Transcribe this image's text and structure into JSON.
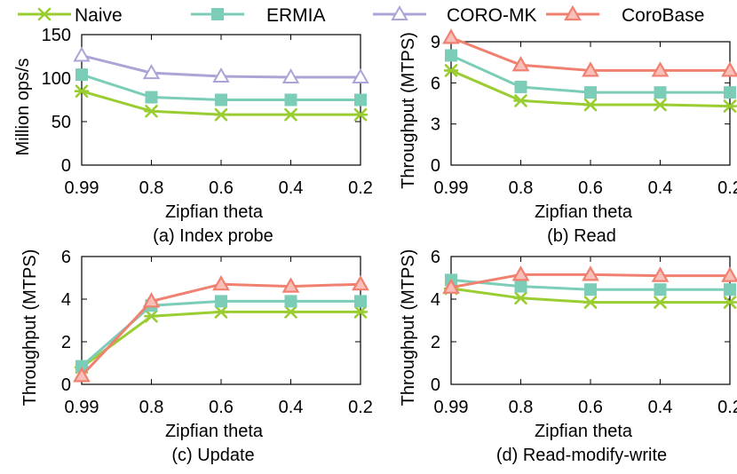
{
  "legend": [
    {
      "name": "Naive",
      "color": "#9ACD32",
      "marker": "star"
    },
    {
      "name": "ERMIA",
      "color": "#7CCDB8",
      "marker": "square"
    },
    {
      "name": "CORO-MK",
      "color": "#ADA4D6",
      "marker": "triangle-open"
    },
    {
      "name": "CoroBase",
      "color": "#F08070",
      "marker": "triangle-filled"
    }
  ],
  "chart_data": [
    {
      "type": "line",
      "caption": "(a) Index probe",
      "xlabel": "Zipfian theta",
      "ylabel": "Million ops/s",
      "categories": [
        "0.99",
        "0.8",
        "0.6",
        "0.4",
        "0.2"
      ],
      "ylim": [
        0,
        150
      ],
      "yticks": [
        0,
        50,
        100,
        150
      ],
      "grid": false,
      "series": [
        {
          "name": "Naive",
          "values": [
            85,
            62,
            58,
            58,
            58
          ]
        },
        {
          "name": "ERMIA",
          "values": [
            104,
            78,
            75,
            75,
            75
          ]
        },
        {
          "name": "CORO-MK",
          "values": [
            126,
            106,
            102,
            101,
            101
          ]
        }
      ]
    },
    {
      "type": "line",
      "caption": "(b) Read",
      "xlabel": "Zipfian theta",
      "ylabel": "Throughput (MTPS)",
      "categories": [
        "0.99",
        "0.8",
        "0.6",
        "0.4",
        "0.2"
      ],
      "ylim": [
        0,
        9
      ],
      "yticks": [
        0,
        3,
        6,
        9
      ],
      "grid": false,
      "series": [
        {
          "name": "Naive",
          "values": [
            6.9,
            4.7,
            4.4,
            4.4,
            4.3
          ]
        },
        {
          "name": "ERMIA",
          "values": [
            8.0,
            5.7,
            5.3,
            5.3,
            5.3
          ]
        },
        {
          "name": "CoroBase",
          "values": [
            9.3,
            7.3,
            6.9,
            6.9,
            6.9
          ]
        }
      ]
    },
    {
      "type": "line",
      "caption": "(c) Update",
      "xlabel": "Zipfian theta",
      "ylabel": "Throughput (MTPS)",
      "categories": [
        "0.99",
        "0.8",
        "0.6",
        "0.4",
        "0.2"
      ],
      "ylim": [
        0,
        6
      ],
      "yticks": [
        0,
        2,
        4,
        6
      ],
      "grid": false,
      "series": [
        {
          "name": "Naive",
          "values": [
            0.8,
            3.2,
            3.4,
            3.4,
            3.4
          ]
        },
        {
          "name": "ERMIA",
          "values": [
            0.85,
            3.7,
            3.9,
            3.9,
            3.9
          ]
        },
        {
          "name": "CoroBase",
          "values": [
            0.4,
            3.9,
            4.7,
            4.6,
            4.7
          ]
        }
      ]
    },
    {
      "type": "line",
      "caption": "(d) Read-modify-write",
      "xlabel": "Zipfian theta",
      "ylabel": "Throughput (MTPS)",
      "categories": [
        "0.99",
        "0.8",
        "0.6",
        "0.4",
        "0.2"
      ],
      "ylim": [
        0,
        6
      ],
      "yticks": [
        0,
        2,
        4,
        6
      ],
      "grid": false,
      "series": [
        {
          "name": "Naive",
          "values": [
            4.5,
            4.05,
            3.85,
            3.85,
            3.85
          ]
        },
        {
          "name": "ERMIA",
          "values": [
            4.9,
            4.6,
            4.45,
            4.45,
            4.45
          ]
        },
        {
          "name": "CoroBase",
          "values": [
            4.55,
            5.15,
            5.15,
            5.1,
            5.1
          ]
        }
      ]
    }
  ]
}
